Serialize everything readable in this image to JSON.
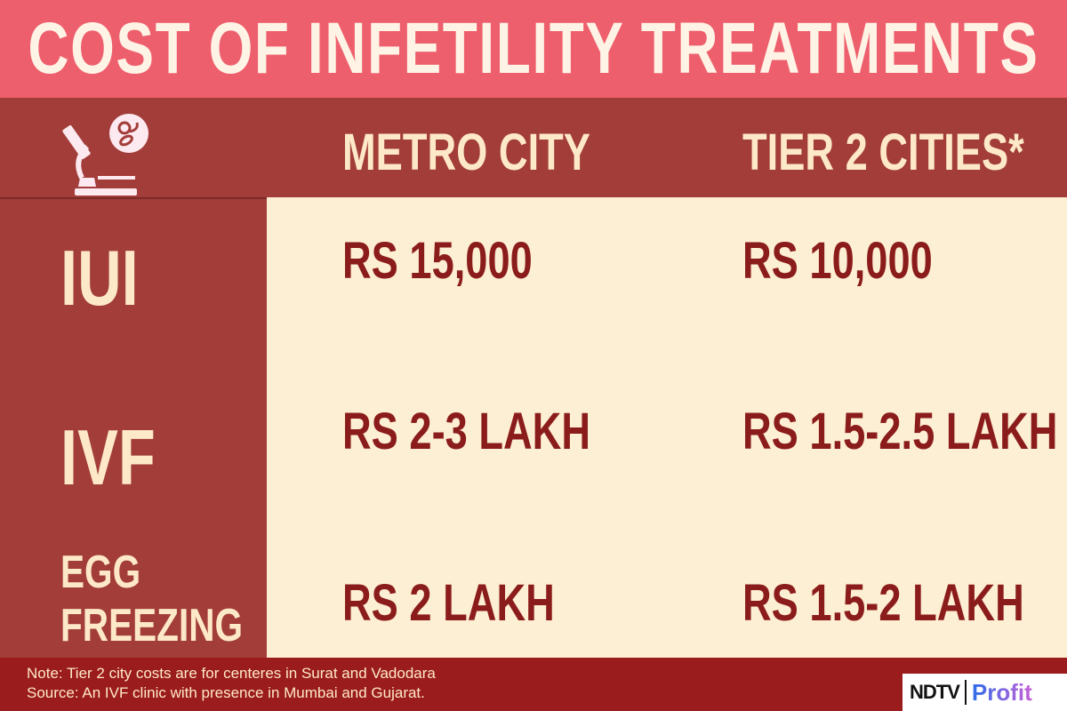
{
  "title": "COST OF INFETILITY TREATMENTS",
  "header": {
    "icon": "microscope-icon",
    "columns": [
      "METRO CITY",
      "TIER 2 CITIES*"
    ]
  },
  "rows": [
    {
      "label": "IUI",
      "metro": "RS 15,000",
      "tier2": "RS 10,000"
    },
    {
      "label": "IVF",
      "metro": "RS 2-3 LAKH",
      "tier2": "RS 1.5-2.5 LAKH"
    },
    {
      "label_line1": "EGG",
      "label_line2": "FREEZING",
      "metro": "RS 2 LAKH",
      "tier2": "RS 1.5-2 LAKH"
    }
  ],
  "footer": {
    "note": "Note: Tier 2 city costs are for centeres in Surat and Vadodara",
    "source": "Source: An IVF clinic with presence in Mumbai and Gujarat.",
    "logo": "NDTV | Profit"
  },
  "colors": {
    "title_band": "#ee5f6d",
    "header_band": "#a23d39",
    "body": "#fdefd3",
    "value_text": "#8b1c1c",
    "footer": "#9b1c1c"
  }
}
